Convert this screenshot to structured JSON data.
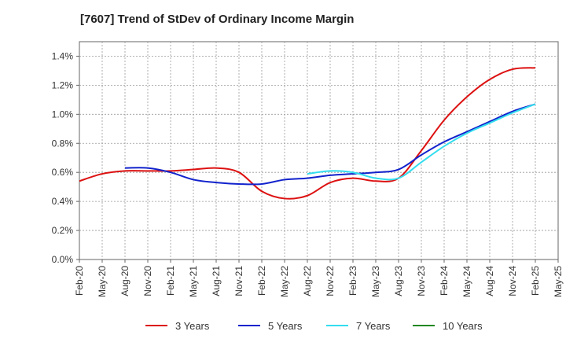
{
  "chart_data": {
    "type": "line",
    "title": "[7607]  Trend of StDev of Ordinary Income Margin",
    "xlabel": "",
    "ylabel": "",
    "x": [
      "Feb-20",
      "May-20",
      "Aug-20",
      "Nov-20",
      "Feb-21",
      "May-21",
      "Aug-21",
      "Nov-21",
      "Feb-22",
      "May-22",
      "Aug-22",
      "Nov-22",
      "Feb-23",
      "May-23",
      "Aug-23",
      "Nov-23",
      "Feb-24",
      "May-24",
      "Aug-24",
      "Nov-24",
      "Feb-25",
      "May-25"
    ],
    "ylim": [
      0,
      1.5
    ],
    "yticks": [
      0,
      0.2,
      0.4,
      0.6,
      0.8,
      1.0,
      1.2,
      1.4
    ],
    "ytick_labels": [
      "0.0%",
      "0.2%",
      "0.4%",
      "0.6%",
      "0.8%",
      "1.0%",
      "1.2%",
      "1.4%"
    ],
    "grid": true,
    "legend_position": "bottom",
    "series": [
      {
        "name": "3 Years",
        "color": "#dd1111",
        "values": [
          0.54,
          0.59,
          0.61,
          0.61,
          0.61,
          0.62,
          0.63,
          0.6,
          0.47,
          0.42,
          0.44,
          0.53,
          0.56,
          0.54,
          0.56,
          0.75,
          0.96,
          1.12,
          1.24,
          1.31,
          1.32,
          null
        ]
      },
      {
        "name": "5 Years",
        "color": "#1122cc",
        "values": [
          null,
          null,
          0.63,
          0.63,
          0.6,
          0.55,
          0.53,
          0.52,
          0.52,
          0.55,
          0.56,
          0.58,
          0.59,
          0.6,
          0.62,
          0.72,
          0.81,
          0.88,
          0.95,
          1.02,
          1.07,
          null
        ]
      },
      {
        "name": "7 Years",
        "color": "#33ddee",
        "values": [
          null,
          null,
          null,
          null,
          null,
          null,
          null,
          null,
          null,
          null,
          0.59,
          0.61,
          0.6,
          0.56,
          0.56,
          0.67,
          0.78,
          0.87,
          0.94,
          1.01,
          1.07,
          null
        ]
      },
      {
        "name": "10 Years",
        "color": "#228822",
        "values": [
          null,
          null,
          null,
          null,
          null,
          null,
          null,
          null,
          null,
          null,
          null,
          null,
          null,
          null,
          null,
          null,
          null,
          null,
          null,
          null,
          null,
          null
        ]
      }
    ]
  }
}
